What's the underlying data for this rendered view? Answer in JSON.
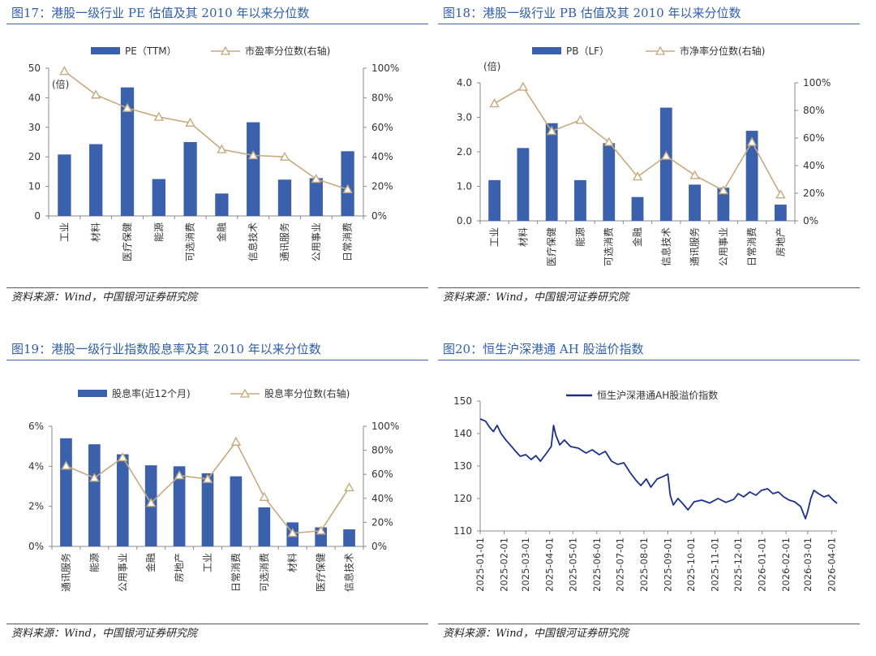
{
  "source_text": "资料来源：Wind，中国银河证券研究院",
  "colors": {
    "bar": "#3b61ad",
    "line": "#c8a97e",
    "line2": "#1a2f8f",
    "axis": "#888888"
  },
  "chart_data": [
    {
      "id": "fig17",
      "type": "bar",
      "title": "图17：港股一级行业 PE 估值及其 2010 年以来分位数",
      "unit_label": "(倍)",
      "legend": {
        "bar": "PE（TTM）",
        "line": "市盈率分位数(右轴)"
      },
      "categories": [
        "工业",
        "材料",
        "医疗保健",
        "能源",
        "可选消费",
        "金融",
        "信息技术",
        "通讯服务",
        "公用事业",
        "日常消费"
      ],
      "values": [
        20.8,
        24.3,
        43.5,
        12.5,
        25.0,
        7.6,
        31.7,
        12.3,
        12.8,
        21.9
      ],
      "line_values": [
        98,
        82,
        73,
        67,
        63,
        45,
        41,
        40,
        25,
        18
      ],
      "ylim": [
        0,
        50
      ],
      "yticks": [
        "0",
        "10",
        "20",
        "30",
        "40",
        "50"
      ],
      "y2lim": [
        0,
        100
      ],
      "y2ticks": [
        "0%",
        "20%",
        "40%",
        "60%",
        "80%",
        "100%"
      ]
    },
    {
      "id": "fig18",
      "type": "bar",
      "title": "图18：港股一级行业 PB 估值及其 2010 年以来分位数",
      "unit_label": "(倍)",
      "legend": {
        "bar": "PB（LF）",
        "line": "市净率分位数(右轴)"
      },
      "categories": [
        "工业",
        "材料",
        "医疗保健",
        "能源",
        "可选消费",
        "金融",
        "信息技术",
        "通讯服务",
        "公用事业",
        "日常消费",
        "房地产"
      ],
      "values": [
        1.18,
        2.11,
        2.83,
        1.18,
        2.25,
        0.69,
        3.28,
        1.05,
        0.96,
        2.61,
        0.47
      ],
      "line_values": [
        85,
        97,
        65,
        73,
        57,
        32,
        47,
        33,
        22,
        57,
        19
      ],
      "ylim": [
        0,
        4
      ],
      "yticks": [
        "0.0",
        "1.0",
        "2.0",
        "3.0",
        "4.0"
      ],
      "y2lim": [
        0,
        100
      ],
      "y2ticks": [
        "0%",
        "20%",
        "40%",
        "60%",
        "80%",
        "100%"
      ]
    },
    {
      "id": "fig19",
      "type": "bar",
      "title": "图19：港股一级行业指数股息率及其 2010 年以来分位数",
      "legend": {
        "bar": "股息率(近12个月)",
        "line": "股息率分位数(右轴)"
      },
      "categories": [
        "通讯服务",
        "能源",
        "公用事业",
        "金融",
        "房地产",
        "工业",
        "日常消费",
        "可选消费",
        "材料",
        "医疗保健",
        "信息技术"
      ],
      "values": [
        5.4,
        5.1,
        4.6,
        4.05,
        4.0,
        3.65,
        3.5,
        1.95,
        1.2,
        0.95,
        0.85
      ],
      "line_values": [
        67,
        57,
        74,
        36,
        59,
        56,
        87,
        41,
        11,
        13,
        49
      ],
      "ylim": [
        0,
        6
      ],
      "yticks": [
        "0%",
        "2%",
        "4%",
        "6%"
      ],
      "y2lim": [
        0,
        100
      ],
      "y2ticks": [
        "0%",
        "20%",
        "40%",
        "60%",
        "80%",
        "100%"
      ]
    },
    {
      "id": "fig20",
      "type": "line",
      "title": "图20：恒生沪深港通 AH 股溢价指数",
      "legend": {
        "line": "恒生沪深港通AH股溢价指数"
      },
      "x_start": "2025-01-01",
      "x_end": "2026-04-08",
      "xticks": [
        "2025-01-01",
        "2025-02-01",
        "2025-03-01",
        "2025-04-01",
        "2025-05-01",
        "2025-06-01",
        "2025-07-01",
        "2025-08-01",
        "2025-09-01",
        "2025-10-01",
        "2025-11-01",
        "2025-12-01",
        "2026-01-01",
        "2026-02-01",
        "2026-03-01",
        "2026-04-01"
      ],
      "ylim": [
        110,
        150
      ],
      "yticks": [
        "110",
        "120",
        "130",
        "140",
        "150"
      ],
      "series": [
        {
          "name": "恒生沪深港通AH股溢价指数",
          "points": [
            [
              "2025-01-01",
              144.5
            ],
            [
              "2025-01-08",
              143.8
            ],
            [
              "2025-01-13",
              142.0
            ],
            [
              "2025-01-18",
              140.6
            ],
            [
              "2025-01-23",
              142.5
            ],
            [
              "2025-01-28",
              140.0
            ],
            [
              "2025-02-04",
              137.8
            ],
            [
              "2025-02-10",
              136.2
            ],
            [
              "2025-02-16",
              134.5
            ],
            [
              "2025-02-22",
              133.0
            ],
            [
              "2025-03-01",
              133.5
            ],
            [
              "2025-03-08",
              132.0
            ],
            [
              "2025-03-14",
              133.2
            ],
            [
              "2025-03-20",
              131.5
            ],
            [
              "2025-03-28",
              134.0
            ],
            [
              "2025-04-03",
              136.0
            ],
            [
              "2025-04-06",
              142.5
            ],
            [
              "2025-04-09",
              139.5
            ],
            [
              "2025-04-14",
              136.5
            ],
            [
              "2025-04-20",
              138.0
            ],
            [
              "2025-04-28",
              136.0
            ],
            [
              "2025-05-08",
              135.5
            ],
            [
              "2025-05-18",
              134.0
            ],
            [
              "2025-05-26",
              135.0
            ],
            [
              "2025-06-04",
              133.5
            ],
            [
              "2025-06-12",
              134.5
            ],
            [
              "2025-06-20",
              131.5
            ],
            [
              "2025-06-28",
              130.5
            ],
            [
              "2025-07-06",
              131.0
            ],
            [
              "2025-07-14",
              128.0
            ],
            [
              "2025-07-22",
              125.5
            ],
            [
              "2025-07-28",
              124.0
            ],
            [
              "2025-08-04",
              126.0
            ],
            [
              "2025-08-10",
              123.5
            ],
            [
              "2025-08-18",
              126.0
            ],
            [
              "2025-08-26",
              126.8
            ],
            [
              "2025-09-01",
              127.5
            ],
            [
              "2025-09-04",
              121.0
            ],
            [
              "2025-09-08",
              118.0
            ],
            [
              "2025-09-14",
              120.0
            ],
            [
              "2025-09-20",
              118.5
            ],
            [
              "2025-09-27",
              116.5
            ],
            [
              "2025-10-05",
              119.0
            ],
            [
              "2025-10-15",
              119.5
            ],
            [
              "2025-10-25",
              118.6
            ],
            [
              "2025-11-05",
              120.0
            ],
            [
              "2025-11-15",
              118.8
            ],
            [
              "2025-11-25",
              119.7
            ],
            [
              "2025-12-01",
              121.5
            ],
            [
              "2025-12-08",
              120.5
            ],
            [
              "2025-12-16",
              122.0
            ],
            [
              "2025-12-24",
              121.0
            ],
            [
              "2025-12-31",
              122.5
            ],
            [
              "2026-01-08",
              123.0
            ],
            [
              "2026-01-15",
              121.5
            ],
            [
              "2026-01-22",
              122.0
            ],
            [
              "2026-01-29",
              120.5
            ],
            [
              "2026-02-05",
              119.5
            ],
            [
              "2026-02-12",
              119.0
            ],
            [
              "2026-02-20",
              117.5
            ],
            [
              "2026-02-26",
              113.8
            ],
            [
              "2026-03-01",
              116.0
            ],
            [
              "2026-03-05",
              120.0
            ],
            [
              "2026-03-09",
              122.5
            ],
            [
              "2026-03-15",
              121.5
            ],
            [
              "2026-03-22",
              120.5
            ],
            [
              "2026-03-28",
              121.0
            ],
            [
              "2026-04-03",
              119.5
            ],
            [
              "2026-04-08",
              118.5
            ]
          ]
        }
      ]
    }
  ]
}
